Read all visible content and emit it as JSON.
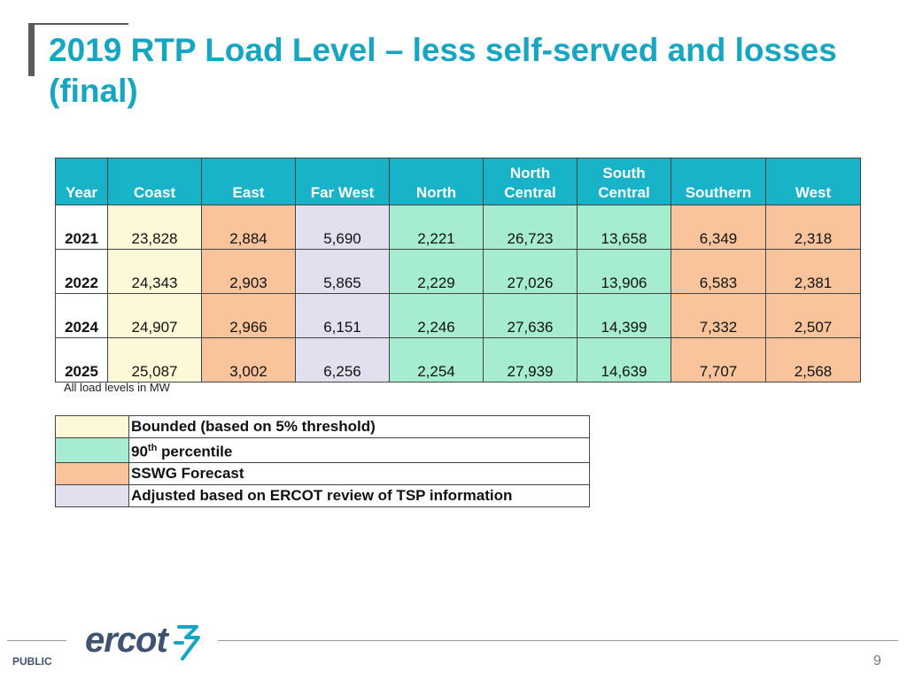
{
  "slide": {
    "title": "2019 RTP Load Level – less self-served and losses (final)",
    "note": "All load levels in MW",
    "footer_label": "PUBLIC",
    "page_number": "9",
    "logo_text": "ercot"
  },
  "table": {
    "headers": [
      {
        "line1": "",
        "line2": "Year"
      },
      {
        "line1": "",
        "line2": "Coast"
      },
      {
        "line1": "",
        "line2": "East"
      },
      {
        "line1": "",
        "line2": "Far West"
      },
      {
        "line1": "",
        "line2": "North"
      },
      {
        "line1": "North",
        "line2": "Central"
      },
      {
        "line1": "South",
        "line2": "Central"
      },
      {
        "line1": "",
        "line2": "Southern"
      },
      {
        "line1": "",
        "line2": "West"
      }
    ],
    "rows": [
      {
        "year": "2021",
        "values": [
          "23,828",
          "2,884",
          "5,690",
          "2,221",
          "26,723",
          "13,658",
          "6,349",
          "2,318"
        ]
      },
      {
        "year": "2022",
        "values": [
          "24,343",
          "2,903",
          "5,865",
          "2,229",
          "27,026",
          "13,906",
          "6,583",
          "2,381"
        ]
      },
      {
        "year": "2024",
        "values": [
          "24,907",
          "2,966",
          "6,151",
          "2,246",
          "27,636",
          "14,399",
          "7,332",
          "2,507"
        ]
      },
      {
        "year": "2025",
        "values": [
          "25,087",
          "3,002",
          "6,256",
          "2,254",
          "27,939",
          "14,639",
          "7,707",
          "2,568"
        ]
      }
    ],
    "column_categories": [
      "bounded",
      "sswg",
      "adjusted",
      "percentile",
      "percentile",
      "percentile",
      "sswg",
      "sswg"
    ]
  },
  "legend": [
    {
      "key": "bounded",
      "label": "Bounded (based on 5% threshold)",
      "color": "#fdf9d8"
    },
    {
      "key": "percentile",
      "label_prefix": "90",
      "label_sup": "th",
      "label_suffix": " percentile",
      "color": "#a6ecd0"
    },
    {
      "key": "sswg",
      "label": "SSWG Forecast",
      "color": "#f9c49c"
    },
    {
      "key": "adjusted",
      "label": "Adjusted based on ERCOT review of TSP information",
      "color": "#e2dfef"
    }
  ],
  "colors": {
    "title": "#17a6c2",
    "header_bg": "#18b3c8"
  }
}
